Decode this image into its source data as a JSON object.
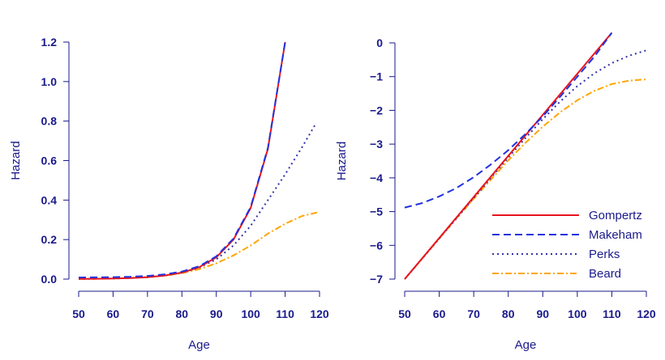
{
  "chart_data": [
    {
      "type": "line",
      "xlabel": "Age",
      "ylabel": "Hazard",
      "xlim": [
        50,
        120
      ],
      "ylim": [
        0,
        1.2
      ],
      "xticks": [
        50,
        60,
        70,
        80,
        90,
        100,
        110,
        120
      ],
      "yticks": [
        "0.0",
        "0.2",
        "0.4",
        "0.6",
        "0.8",
        "1.0",
        "1.2"
      ],
      "series": [
        {
          "id": "gompertz",
          "x": [
            50,
            55,
            60,
            65,
            70,
            75,
            80,
            85,
            90,
            95,
            100,
            105,
            110
          ],
          "y": [
            0.0009,
            0.0017,
            0.003,
            0.0055,
            0.01,
            0.018,
            0.033,
            0.06,
            0.11,
            0.2,
            0.36,
            0.66,
            1.2
          ]
        },
        {
          "id": "makeham",
          "x": [
            50,
            55,
            60,
            65,
            70,
            75,
            80,
            85,
            90,
            95,
            100,
            105,
            110
          ],
          "y": [
            0.008,
            0.009,
            0.01,
            0.012,
            0.016,
            0.024,
            0.038,
            0.065,
            0.115,
            0.205,
            0.365,
            0.665,
            1.2
          ]
        },
        {
          "id": "perks",
          "x": [
            50,
            55,
            60,
            65,
            70,
            75,
            80,
            85,
            90,
            95,
            100,
            105,
            110,
            115,
            119
          ],
          "y": [
            0.0009,
            0.0017,
            0.003,
            0.0055,
            0.01,
            0.018,
            0.032,
            0.058,
            0.1,
            0.17,
            0.27,
            0.4,
            0.53,
            0.67,
            0.79
          ]
        },
        {
          "id": "beard",
          "x": [
            50,
            55,
            60,
            65,
            70,
            75,
            80,
            85,
            90,
            95,
            100,
            105,
            110,
            115,
            120
          ],
          "y": [
            0.0009,
            0.0017,
            0.003,
            0.0054,
            0.0098,
            0.017,
            0.03,
            0.05,
            0.08,
            0.12,
            0.17,
            0.23,
            0.28,
            0.32,
            0.34
          ]
        }
      ]
    },
    {
      "type": "line",
      "xlabel": "Age",
      "ylabel": "Hazard",
      "xlim": [
        50,
        120
      ],
      "ylim": [
        -7,
        0
      ],
      "xticks": [
        50,
        60,
        70,
        80,
        90,
        100,
        110,
        120
      ],
      "yticks": [
        "−7",
        "−6",
        "−5",
        "−4",
        "−3",
        "−2",
        "−1",
        "0"
      ],
      "legend": {
        "position": "bottom-right",
        "entries": [
          "Gompertz",
          "Makeham",
          "Perks",
          "Beard"
        ]
      },
      "series": [
        {
          "id": "gompertz",
          "name": "Gompertz",
          "x": [
            50,
            110
          ],
          "y": [
            -7,
            0.3
          ]
        },
        {
          "id": "makeham",
          "name": "Makeham",
          "x": [
            50,
            55,
            60,
            65,
            70,
            75,
            80,
            85,
            90,
            95,
            100,
            105,
            110
          ],
          "y": [
            -4.88,
            -4.75,
            -4.55,
            -4.3,
            -3.98,
            -3.6,
            -3.18,
            -2.7,
            -2.18,
            -1.6,
            -1.0,
            -0.4,
            0.3
          ]
        },
        {
          "id": "perks",
          "name": "Perks",
          "x": [
            50,
            55,
            60,
            65,
            70,
            75,
            80,
            85,
            90,
            95,
            100,
            105,
            110,
            115,
            120
          ],
          "y": [
            -7,
            -6.4,
            -5.8,
            -5.2,
            -4.6,
            -4.0,
            -3.4,
            -2.82,
            -2.26,
            -1.74,
            -1.28,
            -0.9,
            -0.6,
            -0.38,
            -0.22
          ]
        },
        {
          "id": "beard",
          "name": "Beard",
          "x": [
            50,
            55,
            60,
            65,
            70,
            75,
            80,
            85,
            90,
            95,
            100,
            105,
            110,
            115,
            120
          ],
          "y": [
            -7,
            -6.4,
            -5.8,
            -5.2,
            -4.62,
            -4.05,
            -3.48,
            -2.96,
            -2.48,
            -2.06,
            -1.7,
            -1.42,
            -1.22,
            -1.12,
            -1.08
          ]
        }
      ]
    }
  ],
  "styles": {
    "gompertz": {
      "color": "#e8141e",
      "dash": ""
    },
    "makeham": {
      "color": "#2233dd",
      "dash": "9,5"
    },
    "perks": {
      "color": "#3333aa",
      "dash": "2,4"
    },
    "beard": {
      "color": "#ffa500",
      "dash": "8,3,2,3"
    },
    "axis_color": "#1a1a8c"
  }
}
